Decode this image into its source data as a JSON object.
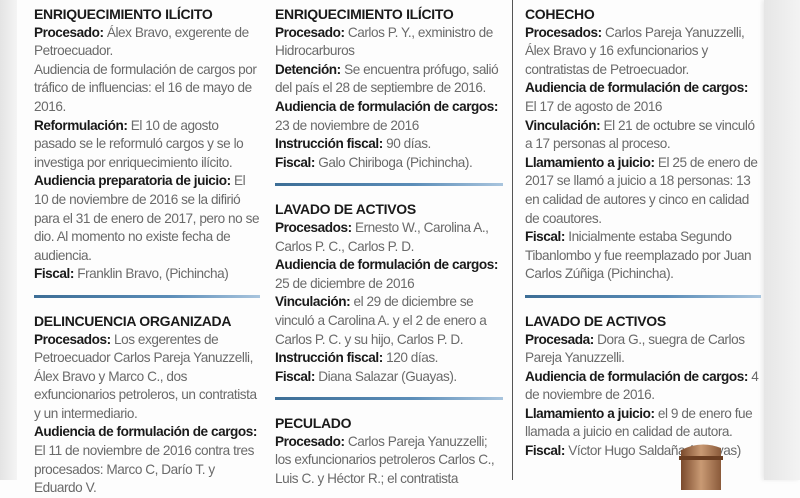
{
  "columns": [
    {
      "sections": [
        {
          "title": "ENRIQUECIMIENTO ILÍCITO",
          "entries": [
            {
              "label": "Procesado:",
              "text": " Álex Bravo, exgerente de Petroecuador."
            },
            {
              "label": "",
              "text": "Audiencia de formulación de cargos por tráfico de influencias: el 16 de mayo de 2016."
            },
            {
              "label": "Reformulación:",
              "text": " El 10 de agosto pasado se le reformuló cargos y se lo investiga por enriquecimiento ilícito."
            },
            {
              "label": "Audiencia preparatoria de juicio:",
              "text": " El 10 de noviembre de 2016 se la difirió para el 31 de enero de 2017, pero no se dio. Al momento no existe fecha de audiencia."
            },
            {
              "label": "Fiscal:",
              "text": " Franklin Bravo, (Pichincha)"
            }
          ]
        },
        {
          "title": "DELINCUENCIA ORGANIZADA",
          "entries": [
            {
              "label": "Procesados:",
              "text": " Los exgerentes de Petroecuador Carlos Pareja Yanuzzelli, Álex Bravo y Marco C., dos exfuncionarios petroleros, un contratista y un intermediario."
            },
            {
              "label": "Audiencia de formulación de cargos:",
              "text": " El 11 de noviembre de 2016 contra tres procesados: Marco C, Darío T. y Eduardo V."
            }
          ]
        }
      ]
    },
    {
      "sections": [
        {
          "title": "ENRIQUECIMIENTO ILÍCITO",
          "entries": [
            {
              "label": "Procesado:",
              "text": " Carlos P. Y., exministro de Hidrocarburos"
            },
            {
              "label": "Detención:",
              "text": " Se encuentra prófugo, salió del país el 28 de septiembre de 2016."
            },
            {
              "label": "Audiencia de formulación de cargos:",
              "text": " 23 de noviembre de 2016"
            },
            {
              "label": "Instrucción fiscal:",
              "text": " 90 días."
            },
            {
              "label": "Fiscal:",
              "text": " Galo Chiriboga (Pichincha)."
            }
          ]
        },
        {
          "title": "LAVADO DE ACTIVOS",
          "entries": [
            {
              "label": "Procesados:",
              "text": " Ernesto W., Carolina A., Carlos P. C., Carlos P. D."
            },
            {
              "label": "Audiencia de formulación de cargos:",
              "text": " 25 de diciembre de 2016"
            },
            {
              "label": "Vinculación:",
              "text": " el 29 de diciembre se vinculó a Carolina A. y el 2 de enero a Carlos P. C. y su hijo, Carlos P. D."
            },
            {
              "label": "Instrucción fiscal:",
              "text": " 120 días."
            },
            {
              "label": "Fiscal:",
              "text": " Diana Salazar (Guayas)."
            }
          ]
        },
        {
          "title": "PECULADO",
          "entries": [
            {
              "label": "Procesado:",
              "text": " Carlos Pareja Yanuzzelli; los exfuncionarios petroleros Carlos C., Luis C. y Héctor R.; el contratista"
            }
          ]
        }
      ]
    },
    {
      "sections": [
        {
          "title": "COHECHO",
          "entries": [
            {
              "label": "Procesados:",
              "text": " Carlos Pareja Yanuzzelli, Álex Bravo y 16 exfuncionarios y contratistas de Petroecuador."
            },
            {
              "label": "Audiencia de formulación de cargos:",
              "text": " El 17 de agosto de 2016"
            },
            {
              "label": "Vinculación:",
              "text": " El 21 de octubre se vinculó a 17 personas al proceso."
            },
            {
              "label": "Llamamiento a juicio:",
              "text": " El 25 de enero de 2017 se llamó a juicio a 18 personas: 13 en calidad de autores y cinco en calidad de coautores."
            },
            {
              "label": "Fiscal:",
              "text": " Inicialmente estaba Segundo Tibanlombo y fue reemplazado por Juan Carlos Zúñiga (Pichincha)."
            }
          ]
        },
        {
          "title": "LAVADO DE ACTIVOS",
          "entries": [
            {
              "label": "Procesada:",
              "text": " Dora G., suegra de Carlos Pareja Yanuzzelli."
            },
            {
              "label": "Audiencia de formulación de cargos:",
              "text": " 4 de noviembre de 2016."
            },
            {
              "label": "Llamamiento a juicio:",
              "text": " el 9 de enero fue llamada a juicio en calidad de autora."
            },
            {
              "label": "Fiscal:",
              "text": " Víctor Hugo Saldaña (Guayas)"
            }
          ]
        }
      ]
    }
  ],
  "colors": {
    "separator": "#4a7ca6",
    "label": "#1a1a1a",
    "body": "#6a6a6a"
  },
  "illustration": "gavel-icon"
}
